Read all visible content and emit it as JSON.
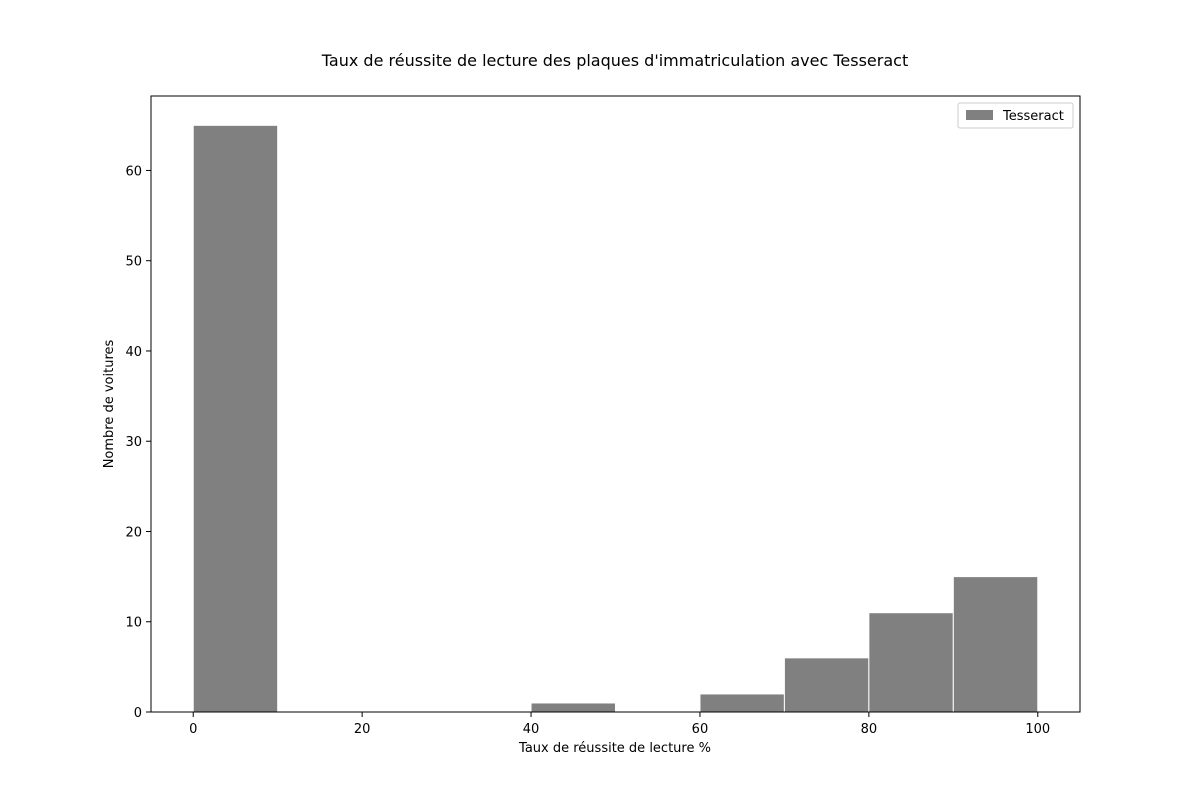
{
  "chart_data": {
    "type": "bar",
    "title": "Taux de réussite de lecture des plaques d'immatriculation avec Tesseract",
    "xlabel": "Taux de réussite de lecture %",
    "ylabel": "Nombre de voitures",
    "xlim": [
      -5,
      105
    ],
    "ylim": [
      0,
      68.25
    ],
    "x_ticks": [
      0,
      20,
      40,
      60,
      80,
      100
    ],
    "y_ticks": [
      0,
      10,
      20,
      30,
      40,
      50,
      60
    ],
    "bin_edges": [
      0,
      10,
      20,
      30,
      40,
      50,
      60,
      70,
      80,
      90,
      100
    ],
    "series": [
      {
        "name": "Tesseract",
        "color": "#808080",
        "edge_color": "#ffffff",
        "values": [
          65,
          0,
          0,
          0,
          1,
          0,
          2,
          6,
          11,
          15
        ]
      }
    ],
    "legend": {
      "position": "top-right"
    },
    "grid": false
  }
}
